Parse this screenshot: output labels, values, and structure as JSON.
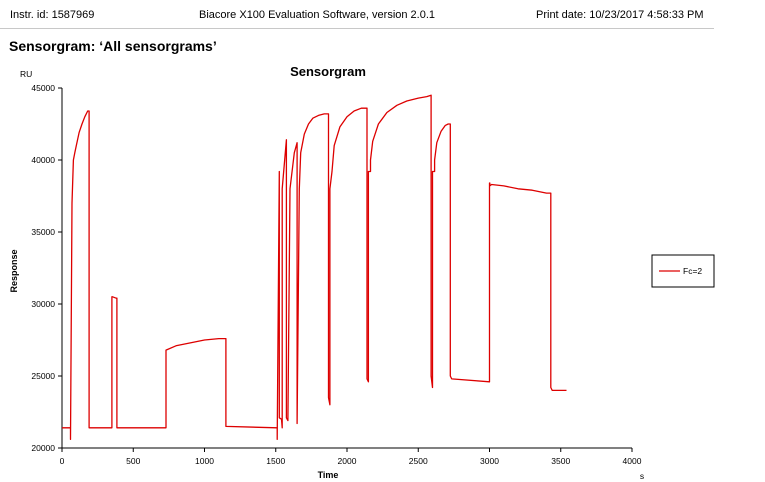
{
  "header": {
    "instrument_id": "Instr. id: 1587969",
    "software": "Biacore X100 Evaluation Software, version 2.0.1",
    "print_date": "Print date: 10/23/2017 4:58:33 PM"
  },
  "report_title": "Sensorgram: ‘All sensorgrams’",
  "chart_data": {
    "type": "line",
    "title": "Sensorgram",
    "xlabel": "Time",
    "ylabel": "Response",
    "x_unit": "s",
    "y_unit": "RU",
    "xlim": [
      0,
      4000
    ],
    "ylim": [
      20000,
      45000
    ],
    "x_ticks": [
      0,
      500,
      1000,
      1500,
      2000,
      2500,
      3000,
      3500,
      4000
    ],
    "y_ticks": [
      20000,
      25000,
      30000,
      35000,
      40000,
      45000
    ],
    "grid": false,
    "legend_position": "right",
    "series": [
      {
        "name": "Fc=2",
        "color": "#dd0000",
        "x": [
          0,
          60,
          60,
          70,
          80,
          90,
          100,
          120,
          140,
          160,
          180,
          190,
          190,
          350,
          350,
          355,
          380,
          385,
          385,
          730,
          730,
          800,
          900,
          1000,
          1100,
          1150,
          1150,
          1510,
          1510,
          1525,
          1525,
          1540,
          1545,
          1545,
          1575,
          1575,
          1585,
          1600,
          1630,
          1650,
          1650,
          1665,
          1665,
          1675,
          1700,
          1730,
          1760,
          1800,
          1840,
          1870,
          1870,
          1880,
          1880,
          1895,
          1895,
          1910,
          1950,
          2000,
          2050,
          2100,
          2140,
          2140,
          2150,
          2150,
          2165,
          2165,
          2180,
          2220,
          2280,
          2350,
          2420,
          2500,
          2560,
          2590,
          2590,
          2600,
          2600,
          2615,
          2615,
          2630,
          2660,
          2690,
          2710,
          2725,
          2725,
          2735,
          2735,
          3000,
          3000,
          3002,
          3002,
          3015,
          3100,
          3200,
          3300,
          3400,
          3430,
          3430,
          3440,
          3440,
          3540
        ],
        "y": [
          21400,
          21400,
          20600,
          37000,
          40000,
          40500,
          41000,
          41900,
          42500,
          43000,
          43400,
          43400,
          21400,
          21400,
          30500,
          30500,
          30400,
          30400,
          21400,
          21400,
          26800,
          27100,
          27300,
          27500,
          27600,
          27600,
          21500,
          21400,
          20600,
          39200,
          22100,
          22000,
          21400,
          38000,
          41400,
          22100,
          21900,
          38000,
          40500,
          41200,
          21700,
          38000,
          38000,
          40500,
          41800,
          42500,
          42900,
          43100,
          43200,
          43200,
          23500,
          23000,
          38000,
          39200,
          39200,
          41000,
          42300,
          43000,
          43400,
          43600,
          43600,
          24800,
          24600,
          39200,
          39200,
          40000,
          41300,
          42500,
          43300,
          43800,
          44100,
          44300,
          44400,
          44500,
          25000,
          24200,
          39200,
          39200,
          40000,
          41200,
          42000,
          42400,
          42500,
          42500,
          25000,
          24800,
          24800,
          24600,
          38400,
          38400,
          38200,
          38300,
          38200,
          38000,
          37900,
          37700,
          37700,
          24200,
          24000,
          24000,
          24000
        ]
      }
    ]
  }
}
